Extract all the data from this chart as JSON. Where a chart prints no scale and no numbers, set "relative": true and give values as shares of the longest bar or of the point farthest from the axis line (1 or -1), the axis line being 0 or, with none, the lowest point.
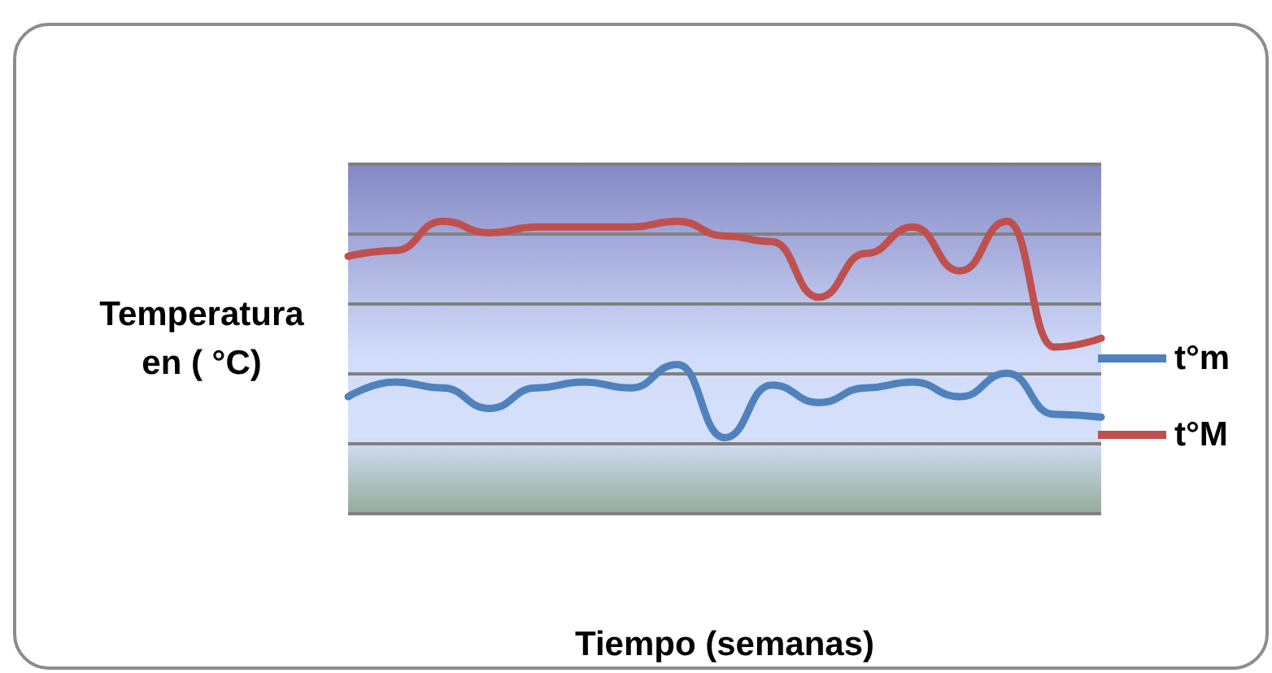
{
  "chart_data": {
    "type": "line",
    "relative": true,
    "xlabel": "Tiempo (semanas)",
    "ylabel": "Temperatura\nen ( °C)",
    "categories": [
      null,
      null,
      null,
      null,
      null,
      null,
      null,
      null,
      null,
      null,
      null,
      null,
      null,
      null,
      null,
      null,
      null
    ],
    "series": [
      {
        "name": "t°m",
        "color": "#4f81bd",
        "values": [
          0.4,
          0.45,
          0.43,
          0.36,
          0.43,
          0.45,
          0.43,
          0.51,
          0.26,
          0.44,
          0.38,
          0.43,
          0.45,
          0.4,
          0.48,
          0.34,
          0.33
        ]
      },
      {
        "name": "t°M",
        "color": "#c0504d",
        "values": [
          0.88,
          0.9,
          1.0,
          0.96,
          0.98,
          0.98,
          0.98,
          1.0,
          0.95,
          0.93,
          0.74,
          0.89,
          0.98,
          0.83,
          1.0,
          0.57,
          0.6
        ]
      }
    ],
    "grid": "y",
    "legend": "right",
    "marker": "none",
    "line_style": "solid"
  }
}
